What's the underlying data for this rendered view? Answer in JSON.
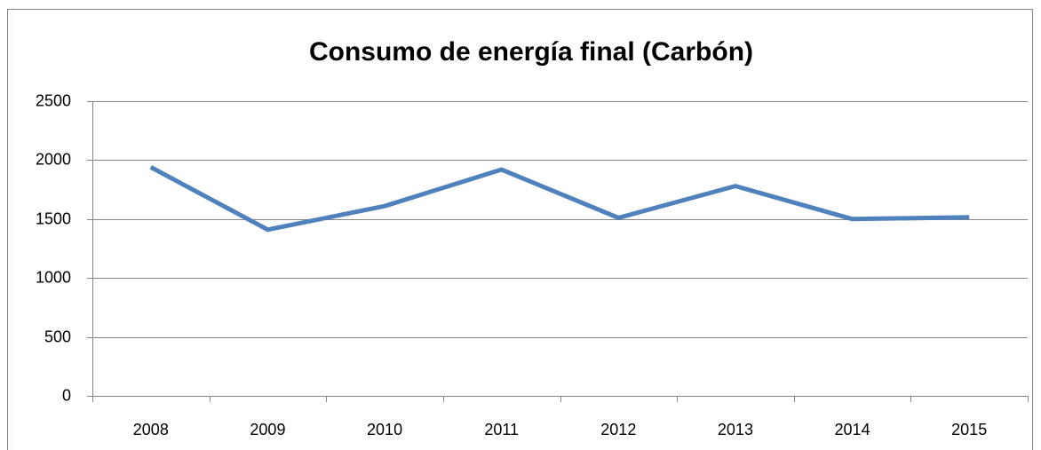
{
  "chart_data": {
    "type": "line",
    "title": "Consumo de energía final (Carbón)",
    "categories": [
      "2008",
      "2009",
      "2010",
      "2011",
      "2012",
      "2013",
      "2014",
      "2015"
    ],
    "series": [
      {
        "name": "Carbón",
        "color": "#4f81bd",
        "values": [
          1940,
          1410,
          1610,
          1920,
          1510,
          1780,
          1500,
          1515
        ]
      }
    ],
    "ylim": [
      0,
      2500
    ],
    "yticks": [
      0,
      500,
      1000,
      1500,
      2000,
      2500
    ],
    "grid": true,
    "legend": false
  }
}
